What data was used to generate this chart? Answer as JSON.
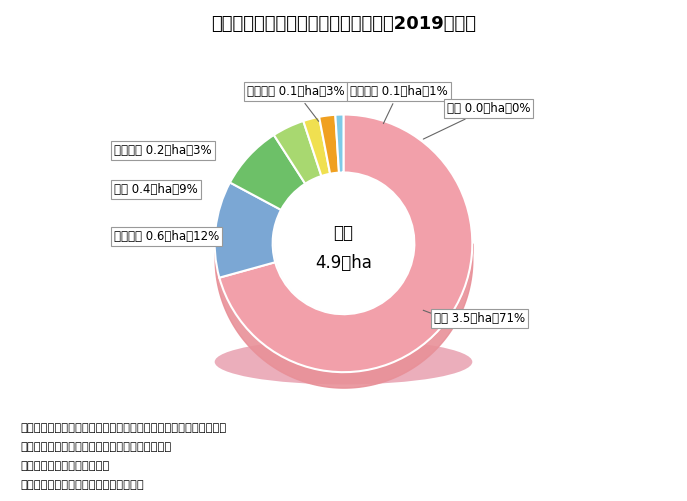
{
  "title": "主要な野生鳥獣による森林被害面積（2019年度）",
  "center_label_line1": "合計",
  "center_label_line2": "4.9千ha",
  "labels": [
    "シカ",
    "ノネズミ",
    "クマ",
    "カモシカ",
    "ノウサギ",
    "イノシシ",
    "サル"
  ],
  "actual_vals": [
    3.5,
    0.6,
    0.4,
    0.2,
    0.1,
    0.1,
    0.05
  ],
  "colors": [
    "#F2A0AA",
    "#7BA7D4",
    "#6DC068",
    "#A8D870",
    "#F0E050",
    "#F0A020",
    "#7ECAE8"
  ],
  "annotation_labels": [
    "シカ 3.5千ha、71%",
    "ノネズミ 0.6千ha、12%",
    "クマ 0.4千ha、9%",
    "カモシカ 0.2千ha、3%",
    "ノウサギ 0.1千ha、3%",
    "イノシシ 0.1千ha、1%",
    "サル 0.0千ha、0%"
  ],
  "note_lines": [
    "注１：数値は、国有林及び民有林の合計で、森林管理局および都道",
    "　　　府県からの報告に基づき、集計したもの。",
    "　２：森林及び苗畝の被害。",
    "資料：林野庁研究指導課、業務課調べ。"
  ],
  "background_color": "#FFFFFF"
}
